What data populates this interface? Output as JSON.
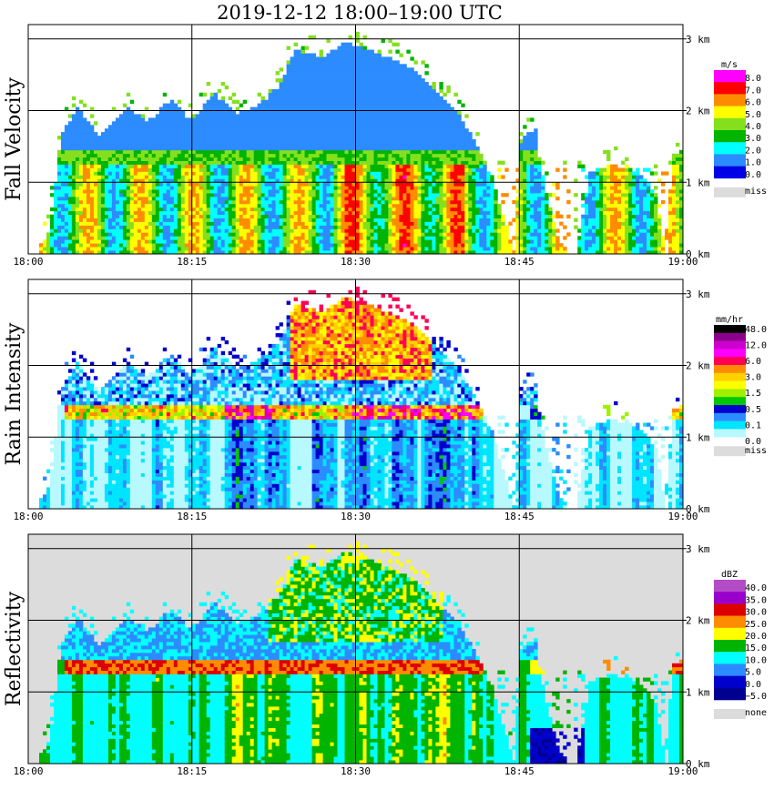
{
  "title": "2019-12-12   18:00–19:00 UTC",
  "chart_data": {
    "type": "heatmap",
    "time_range": [
      "18:00",
      "19:00"
    ],
    "x_ticks": [
      "18:00",
      "18:15",
      "18:30",
      "18:45",
      "19:00"
    ],
    "x_tick_minutes": [
      0,
      15,
      30,
      45,
      60
    ],
    "height_range_km": [
      0,
      3.2
    ],
    "y_ticks": [
      "0 km",
      "1 km",
      "2 km",
      "3 km"
    ],
    "y_tick_values": [
      0,
      1,
      2,
      3
    ],
    "grid": true,
    "legend_placement": "right",
    "panels": [
      {
        "id": "fall-velocity",
        "ylabel": "Fall Velocity",
        "unit": "m/s",
        "missing_color": "#dcdcdc",
        "bins": [
          {
            "label": "8.0",
            "color": "#ff00ff"
          },
          {
            "label": "7.0",
            "color": "#ff0000"
          },
          {
            "label": "6.0",
            "color": "#ff8c00"
          },
          {
            "label": "5.0",
            "color": "#ffff00"
          },
          {
            "label": "4.0",
            "color": "#84e01c"
          },
          {
            "label": "3.0",
            "color": "#00b400"
          },
          {
            "label": "2.0",
            "color": "#00ffff"
          },
          {
            "label": "1.0",
            "color": "#2c8cff"
          },
          {
            "label": "0.0",
            "color": "#0000e6"
          }
        ],
        "bottom_labels": [
          "miss"
        ]
      },
      {
        "id": "rain-intensity",
        "ylabel": "Rain Intensity",
        "unit": "mm/hr",
        "missing_color": "#dcdcdc",
        "bins": [
          {
            "label": "48.0",
            "color": "#000000"
          },
          {
            "label": "",
            "color": "#8b008b"
          },
          {
            "label": "12.0",
            "color": "#cc00cc"
          },
          {
            "label": "",
            "color": "#ff00ff"
          },
          {
            "label": "6.0",
            "color": "#ff0055"
          },
          {
            "label": "",
            "color": "#ff8c00"
          },
          {
            "label": "3.0",
            "color": "#ffd000"
          },
          {
            "label": "",
            "color": "#ffff00"
          },
          {
            "label": "1.5",
            "color": "#a0f000"
          },
          {
            "label": "",
            "color": "#00c800"
          },
          {
            "label": "0.5",
            "color": "#0000cd"
          },
          {
            "label": "",
            "color": "#2c8cff"
          },
          {
            "label": "0.1",
            "color": "#00e5ff"
          },
          {
            "label": "",
            "color": "#b8f8ff"
          }
        ],
        "bottom_labels": [
          "0.0",
          "miss"
        ]
      },
      {
        "id": "reflectivity",
        "ylabel": "Reflectivity",
        "unit": "dBZ",
        "missing_color": "#dcdcdc",
        "bins": [
          {
            "label": "40.0",
            "color": "#b44cc8"
          },
          {
            "label": "35.0",
            "color": "#9900cc"
          },
          {
            "label": "30.0",
            "color": "#dd0000"
          },
          {
            "label": "25.0",
            "color": "#ff8c00"
          },
          {
            "label": "20.0",
            "color": "#ffff00"
          },
          {
            "label": "15.0",
            "color": "#00b400"
          },
          {
            "label": "10.0",
            "color": "#00ffff"
          },
          {
            "label": "5.0",
            "color": "#2c8cff"
          },
          {
            "label": "0.0",
            "color": "#0000cd"
          },
          {
            "label": "−5.0",
            "color": "#000090"
          }
        ],
        "bottom_labels": [
          "none"
        ]
      }
    ]
  }
}
